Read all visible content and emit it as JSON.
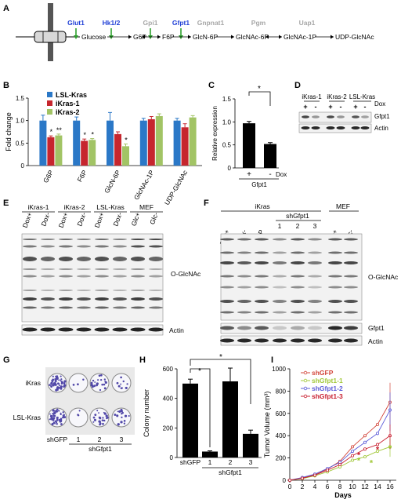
{
  "panels": {
    "A": "A",
    "B": "B",
    "C": "C",
    "D": "D",
    "E": "E",
    "F": "F",
    "G": "G",
    "H": "H",
    "I": "I"
  },
  "pathway": {
    "enzymes": [
      "Glut1",
      "Hk1/2",
      "Gpi1",
      "Gfpt1",
      "Gnpnat1",
      "Pgm",
      "Uap1"
    ],
    "metabolites": [
      "Glucose",
      "G6P",
      "F6P",
      "GlcN-6P",
      "GlcNAc-6P",
      "GlcNAc-1P",
      "UDP-GlcNAc"
    ],
    "colors": {
      "highlight": "#1f3fd6",
      "muted": "#a7a7a7",
      "arrow_down": "#2ea02e"
    }
  },
  "chart_B": {
    "type": "bar",
    "categories": [
      "G6P",
      "F6P",
      "GlcN-6P",
      "GlcNAc-1P",
      "UDP-GlcNAc"
    ],
    "series": [
      {
        "name": "LSL-Kras",
        "color": "#2b78c7",
        "values": [
          1.0,
          1.0,
          1.0,
          1.0,
          1.0
        ],
        "err": [
          0.12,
          0.08,
          0.18,
          0.05,
          0.05
        ]
      },
      {
        "name": "iKras-1",
        "color": "#c6262e",
        "values": [
          0.63,
          0.55,
          0.7,
          1.03,
          0.85
        ],
        "err": [
          0.03,
          0.04,
          0.05,
          0.06,
          0.08
        ]
      },
      {
        "name": "iKras-2",
        "color": "#a2c465",
        "values": [
          0.67,
          0.57,
          0.43,
          1.1,
          1.07
        ],
        "err": [
          0.03,
          0.03,
          0.05,
          0.05,
          0.04
        ]
      }
    ],
    "ylabel": "Fold change",
    "ylim": [
      0,
      1.5
    ],
    "yticks": [
      "0",
      "0.5",
      "1.0",
      "1.5"
    ],
    "stars": [
      {
        "cat": 0,
        "series": 1,
        "text": "*"
      },
      {
        "cat": 0,
        "series": 2,
        "text": "**"
      },
      {
        "cat": 1,
        "series": 1,
        "text": "*"
      },
      {
        "cat": 1,
        "series": 2,
        "text": "*"
      },
      {
        "cat": 2,
        "series": 2,
        "text": "*"
      }
    ]
  },
  "chart_C": {
    "type": "bar",
    "categories": [
      "+",
      "-"
    ],
    "values": [
      0.97,
      0.52
    ],
    "err": [
      0.04,
      0.03
    ],
    "ylabel": "Relative expression",
    "ylim": [
      0,
      1.5
    ],
    "yticks": [
      "0",
      "0.5",
      "1.0",
      "1.5"
    ],
    "cond_label": "Dox",
    "group_label": "Gfpt1",
    "sig": "*"
  },
  "panel_D": {
    "groups": [
      "iKras-1",
      "iKras-2",
      "LSL-Kras"
    ],
    "dox_label": "Dox",
    "lanes": [
      "+",
      "-",
      "+",
      "-",
      "+",
      "-"
    ],
    "rows": [
      "Gfpt1",
      "Actin"
    ]
  },
  "panel_E": {
    "groups": [
      "iKras-1",
      "iKras-2",
      "LSL-Kras",
      "MEF"
    ],
    "lanes": [
      "Dox+",
      "Dox-",
      "Dox+",
      "Dox-",
      "Dox+",
      "Dox-",
      "Glc+",
      "Glc-"
    ],
    "rows": [
      "O-GlcNAc",
      "Actin"
    ]
  },
  "panel_F": {
    "top_group": "iKras",
    "sub_group": "shGfpt1",
    "mef": "MEF",
    "lanes": [
      "Dox+",
      "Dox-",
      "shGFP",
      "1",
      "2",
      "3",
      "Glc+",
      "Glc-"
    ],
    "rows": [
      "O-GlcNAc",
      "Gfpt1",
      "Actin"
    ]
  },
  "panel_G": {
    "rows": [
      "iKras",
      "LSL-Kras"
    ],
    "cols": [
      "shGFP",
      "1",
      "2",
      "3"
    ],
    "group_label": "shGfpt1",
    "density": [
      [
        0.85,
        0.05,
        0.35,
        0.15
      ],
      [
        0.8,
        0.05,
        0.4,
        0.25
      ]
    ]
  },
  "chart_H": {
    "type": "bar",
    "categories": [
      "shGFP",
      "1",
      "2",
      "3"
    ],
    "values": [
      500,
      40,
      515,
      160
    ],
    "err": [
      30,
      5,
      90,
      25
    ],
    "ylabel": "Colony number",
    "ylim": [
      0,
      600
    ],
    "yticks": [
      "0",
      "200",
      "400",
      "600"
    ],
    "group_label": "shGfpt1",
    "sig": [
      "*",
      "*"
    ]
  },
  "chart_I": {
    "type": "line",
    "x": [
      0,
      2,
      4,
      6,
      8,
      10,
      12,
      14,
      16
    ],
    "series": [
      {
        "name": "shGFP",
        "color": "#d2453a",
        "values": [
          0,
          20,
          50,
          100,
          170,
          300,
          400,
          500,
          700
        ]
      },
      {
        "name": "shGfpt1-1",
        "color": "#a2c83a",
        "values": [
          0,
          15,
          40,
          75,
          120,
          180,
          210,
          260,
          300
        ]
      },
      {
        "name": "shGfpt1-2",
        "color": "#5b5bd8",
        "values": [
          0,
          25,
          55,
          105,
          160,
          260,
          340,
          420,
          630
        ]
      },
      {
        "name": "shGfpt1-3",
        "color": "#c81e2e",
        "values": [
          0,
          18,
          45,
          90,
          140,
          220,
          280,
          320,
          400
        ]
      }
    ],
    "xlabel": "Days",
    "ylabel": "Tumor Volume (mm³)",
    "ylim": [
      0,
      1000
    ],
    "xlim": [
      0,
      17
    ],
    "yticks": [
      "0",
      "200",
      "400",
      "600",
      "800",
      "1000"
    ],
    "xticks": [
      "0",
      "2",
      "4",
      "6",
      "8",
      "10",
      "12",
      "14",
      "16"
    ]
  }
}
